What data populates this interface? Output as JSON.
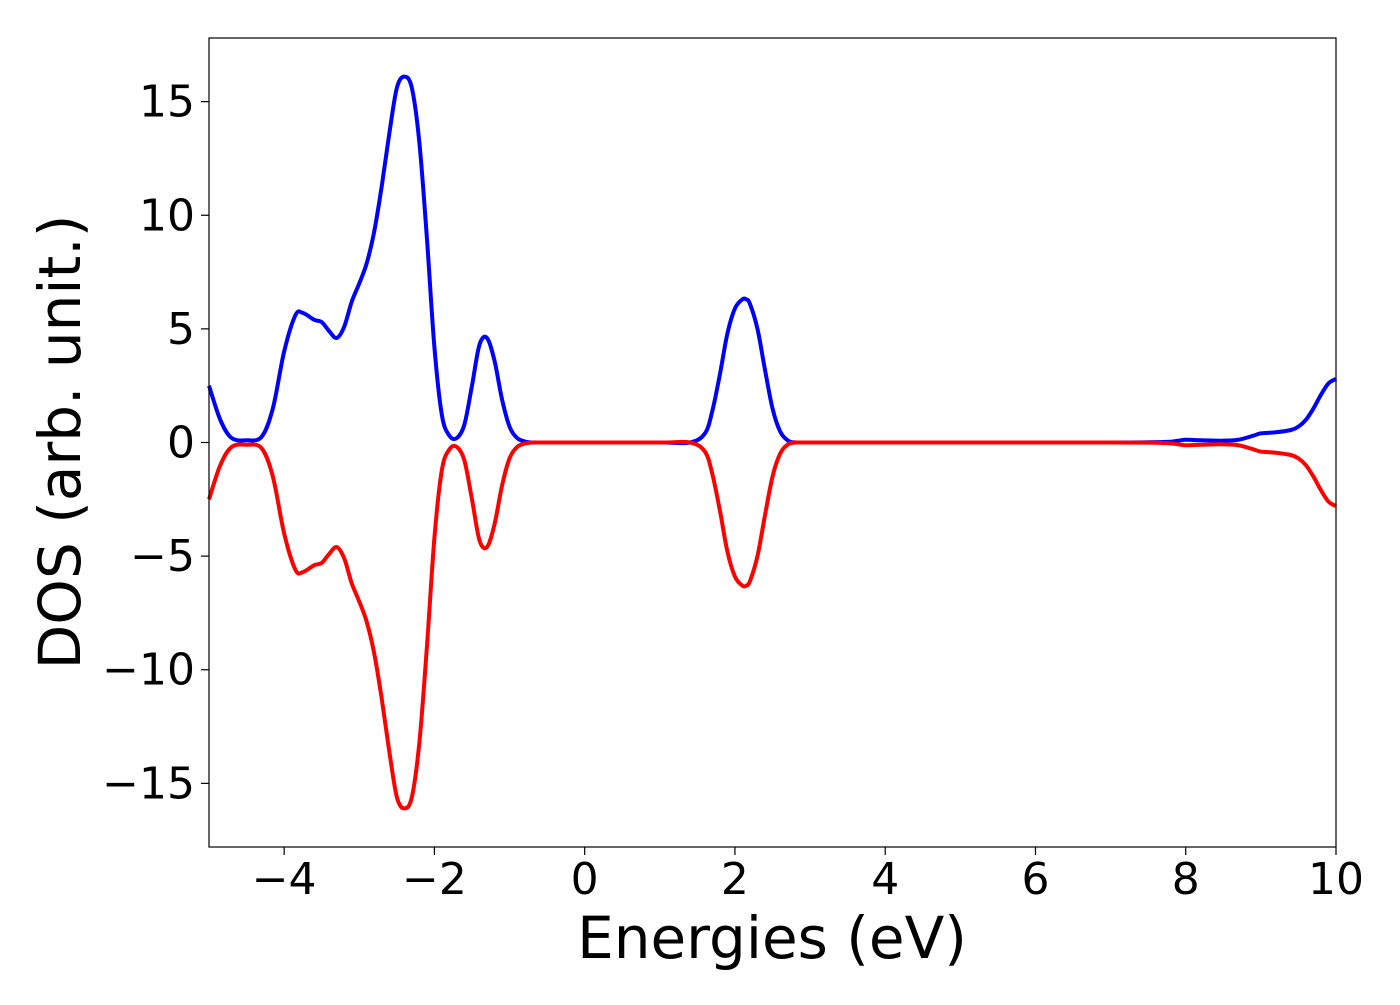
{
  "chart_data": {
    "type": "line",
    "title": "",
    "xlabel": "Energies (eV)",
    "ylabel": "DOS (arb. unit.)",
    "xlim": [
      -5,
      10
    ],
    "ylim": [
      -17.8,
      17.8
    ],
    "xticks": [
      -4,
      -2,
      0,
      2,
      4,
      6,
      8,
      10
    ],
    "xtick_labels": [
      "−4",
      "−2",
      "0",
      "2",
      "4",
      "6",
      "8",
      "10"
    ],
    "yticks": [
      -15,
      -10,
      -5,
      0,
      5,
      10,
      15
    ],
    "ytick_labels": [
      "−15",
      "−10",
      "−5",
      "0",
      "5",
      "10",
      "15"
    ],
    "grid": false,
    "legend": "none",
    "series": [
      {
        "color": "#0000ff",
        "x": [
          -5.0,
          -4.85,
          -4.7,
          -4.5,
          -4.3,
          -4.15,
          -4.0,
          -3.85,
          -3.75,
          -3.6,
          -3.5,
          -3.4,
          -3.3,
          -3.2,
          -3.1,
          -3.0,
          -2.9,
          -2.8,
          -2.7,
          -2.6,
          -2.5,
          -2.4,
          -2.3,
          -2.2,
          -2.1,
          -2.0,
          -1.9,
          -1.8,
          -1.7,
          -1.6,
          -1.5,
          -1.4,
          -1.3,
          -1.2,
          -1.1,
          -1.0,
          -0.9,
          -0.8,
          -0.7,
          -0.6,
          -0.4,
          0.0,
          1.0,
          1.4,
          1.6,
          1.7,
          1.8,
          1.9,
          2.0,
          2.1,
          2.15,
          2.2,
          2.3,
          2.4,
          2.5,
          2.6,
          2.7,
          2.8,
          3.0,
          5.0,
          7.0,
          7.7,
          7.9,
          8.0,
          8.2,
          8.5,
          8.7,
          8.9,
          9.0,
          9.2,
          9.4,
          9.5,
          9.6,
          9.7,
          9.8,
          9.9,
          10.0
        ],
        "y": [
          2.5,
          1.0,
          0.2,
          0.1,
          0.25,
          1.5,
          4.0,
          5.6,
          5.7,
          5.4,
          5.3,
          4.9,
          4.6,
          5.1,
          6.2,
          7.0,
          7.9,
          9.3,
          11.3,
          13.6,
          15.6,
          16.1,
          15.6,
          13.2,
          9.0,
          4.2,
          1.2,
          0.3,
          0.2,
          0.8,
          2.5,
          4.3,
          4.6,
          3.6,
          1.9,
          0.7,
          0.2,
          0.05,
          0.0,
          0.0,
          0.0,
          0.0,
          0.0,
          0.0,
          0.4,
          1.4,
          3.0,
          4.8,
          5.9,
          6.3,
          6.3,
          6.1,
          5.0,
          3.2,
          1.5,
          0.5,
          0.1,
          0.0,
          0.0,
          0.0,
          0.0,
          0.02,
          0.08,
          0.12,
          0.1,
          0.08,
          0.12,
          0.3,
          0.4,
          0.45,
          0.55,
          0.7,
          1.0,
          1.5,
          2.1,
          2.6,
          2.8
        ]
      },
      {
        "color": "#ff0000",
        "x": [
          -5.0,
          -4.85,
          -4.7,
          -4.5,
          -4.3,
          -4.15,
          -4.0,
          -3.85,
          -3.75,
          -3.6,
          -3.5,
          -3.4,
          -3.3,
          -3.2,
          -3.1,
          -3.0,
          -2.9,
          -2.8,
          -2.7,
          -2.6,
          -2.5,
          -2.4,
          -2.3,
          -2.2,
          -2.1,
          -2.0,
          -1.9,
          -1.8,
          -1.7,
          -1.6,
          -1.5,
          -1.4,
          -1.3,
          -1.2,
          -1.1,
          -1.0,
          -0.9,
          -0.8,
          -0.7,
          -0.6,
          -0.4,
          0.0,
          1.0,
          1.4,
          1.6,
          1.7,
          1.8,
          1.9,
          2.0,
          2.1,
          2.15,
          2.2,
          2.3,
          2.4,
          2.5,
          2.6,
          2.7,
          2.8,
          3.0,
          5.0,
          7.0,
          7.7,
          7.9,
          8.0,
          8.2,
          8.5,
          8.7,
          8.9,
          9.0,
          9.2,
          9.4,
          9.5,
          9.6,
          9.7,
          9.8,
          9.9,
          10.0
        ],
        "y": [
          -2.5,
          -1.0,
          -0.2,
          -0.1,
          -0.25,
          -1.5,
          -4.0,
          -5.6,
          -5.7,
          -5.4,
          -5.3,
          -4.9,
          -4.6,
          -5.1,
          -6.2,
          -7.0,
          -7.9,
          -9.3,
          -11.3,
          -13.6,
          -15.6,
          -16.1,
          -15.6,
          -13.2,
          -9.0,
          -4.2,
          -1.2,
          -0.3,
          -0.2,
          -0.8,
          -2.5,
          -4.3,
          -4.6,
          -3.6,
          -1.9,
          -0.7,
          -0.2,
          -0.05,
          0.0,
          0.0,
          0.0,
          0.0,
          0.0,
          0.0,
          -0.4,
          -1.4,
          -3.0,
          -4.8,
          -5.9,
          -6.3,
          -6.3,
          -6.1,
          -5.0,
          -3.2,
          -1.5,
          -0.5,
          -0.1,
          0.0,
          0.0,
          0.0,
          0.0,
          -0.02,
          -0.08,
          -0.12,
          -0.1,
          -0.08,
          -0.12,
          -0.3,
          -0.4,
          -0.45,
          -0.55,
          -0.7,
          -1.0,
          -1.5,
          -2.1,
          -2.6,
          -2.8
        ]
      }
    ]
  }
}
